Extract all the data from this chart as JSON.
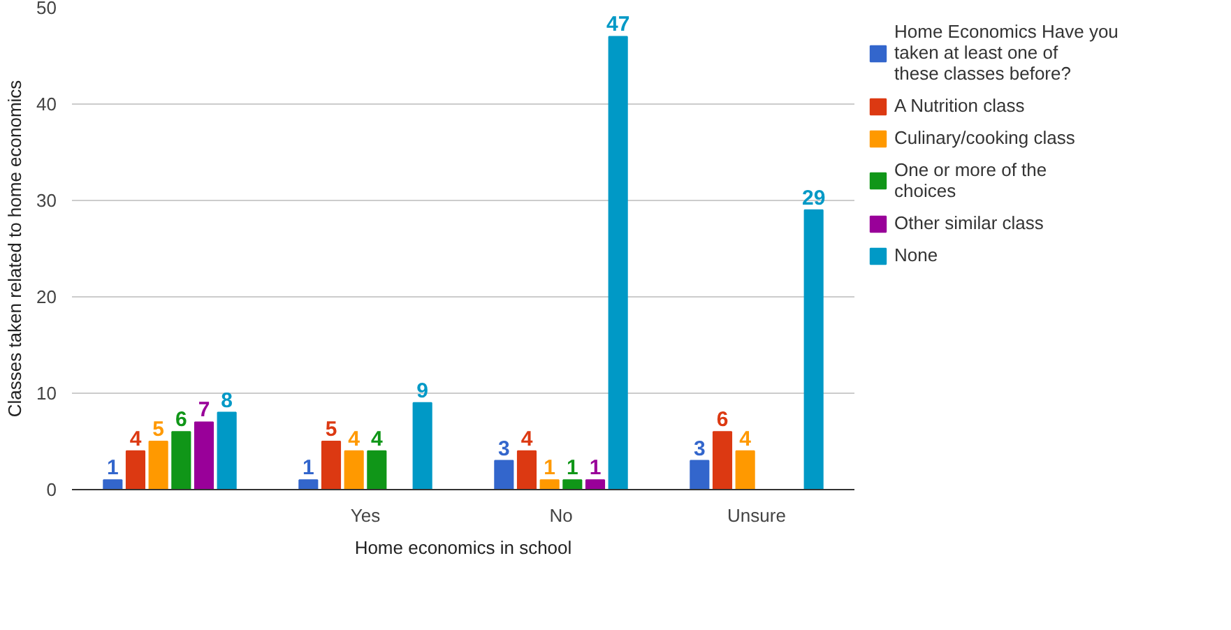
{
  "chart_data": {
    "type": "bar",
    "xlabel": "Home economics in school",
    "ylabel": "Classes taken related to home economics",
    "categories": [
      null,
      "Yes",
      "No",
      "Unsure"
    ],
    "series": [
      {
        "name": "Home Economics Have you taken at least one of these classes before?",
        "color": "#3366cc",
        "values": [
          1,
          1,
          3,
          3
        ]
      },
      {
        "name": "A Nutrition class",
        "color": "#dc3912",
        "values": [
          4,
          5,
          4,
          6
        ]
      },
      {
        "name": "Culinary/cooking class",
        "color": "#ff9900",
        "values": [
          5,
          4,
          1,
          4
        ]
      },
      {
        "name": "One or more of the choices",
        "color": "#109618",
        "values": [
          6,
          4,
          1,
          null
        ]
      },
      {
        "name": "Other similar class",
        "color": "#990099",
        "values": [
          7,
          null,
          1,
          null
        ]
      },
      {
        "name": "None",
        "color": "#0099c6",
        "values": [
          8,
          9,
          47,
          29
        ]
      }
    ],
    "ylim": [
      0,
      50
    ],
    "yticks": [
      0,
      10,
      20,
      30,
      40,
      50
    ],
    "grid": "y",
    "legend": "right",
    "data_labels": true
  }
}
